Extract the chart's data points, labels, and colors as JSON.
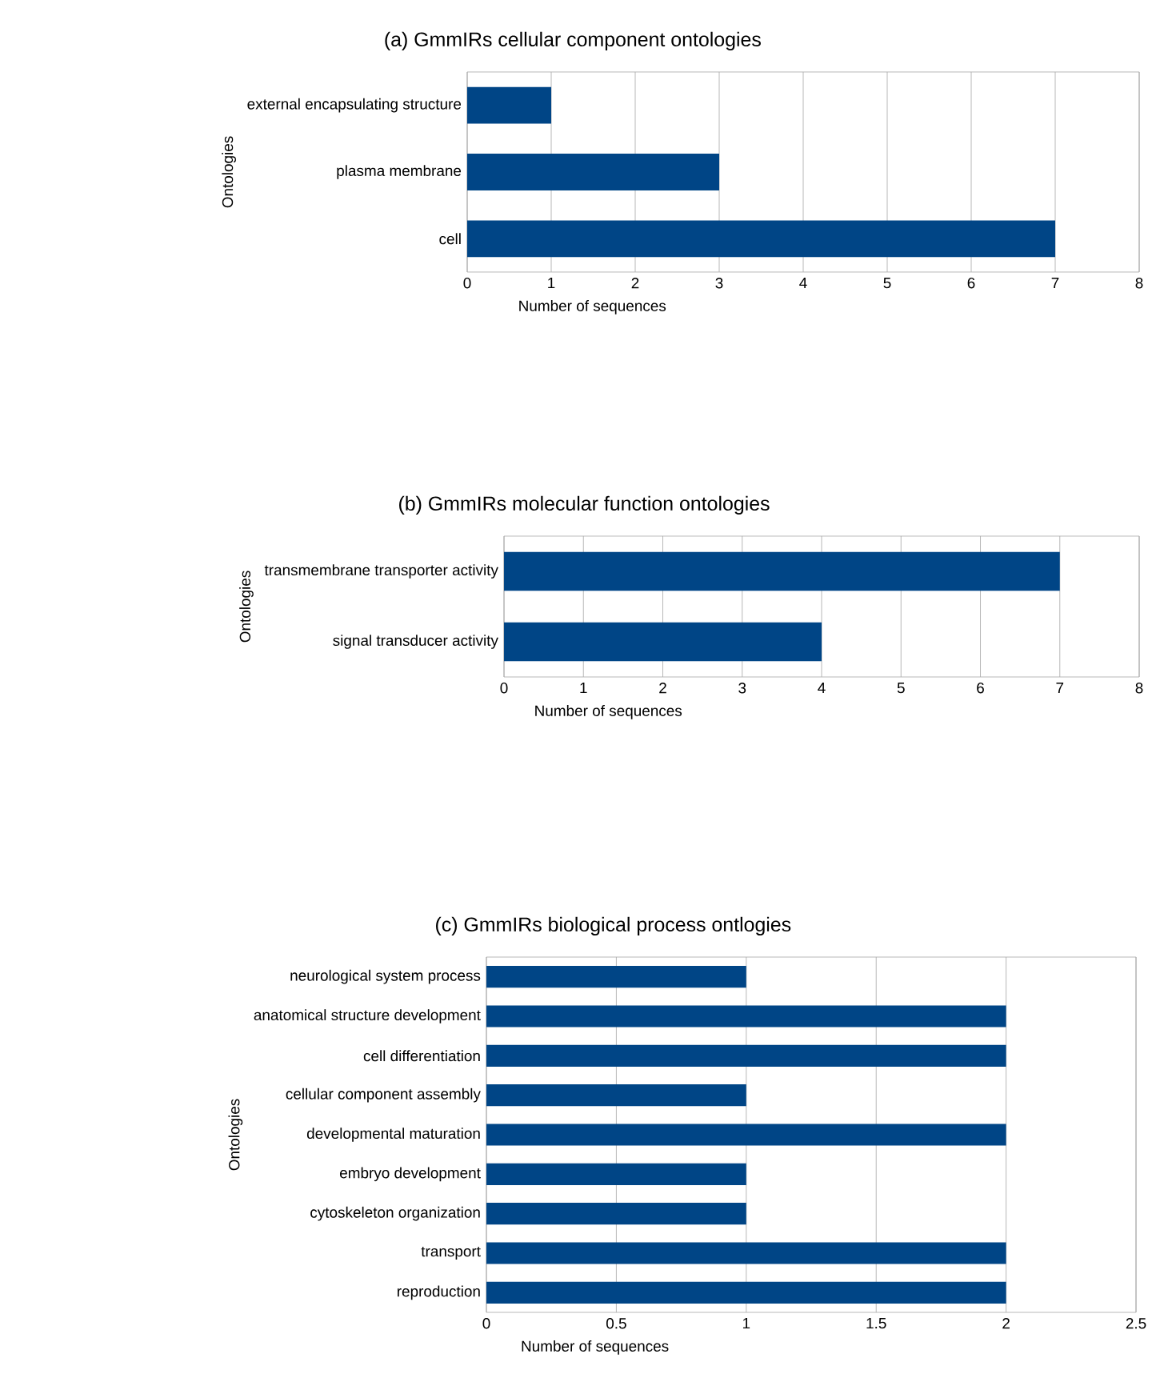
{
  "chart_data": [
    {
      "type": "bar",
      "orientation": "horizontal",
      "title": "(a) GmmIRs cellular component ontologies",
      "xlabel": "Number of sequences",
      "ylabel": "Ontologies",
      "categories": [
        "external encapsulating structure",
        "plasma membrane",
        "cell"
      ],
      "values": [
        1,
        3,
        7
      ],
      "color": "#004586",
      "xlim": [
        0,
        8
      ],
      "xticks": [
        0,
        1,
        2,
        3,
        4,
        5,
        6,
        7,
        8
      ],
      "grid": "x"
    },
    {
      "type": "bar",
      "orientation": "horizontal",
      "title": "(b) GmmIRs molecular function ontologies",
      "xlabel": "Number of sequences",
      "ylabel": "Ontologies",
      "categories": [
        "transmembrane transporter activity",
        "signal transducer activity"
      ],
      "values": [
        7,
        4
      ],
      "color": "#004586",
      "xlim": [
        0,
        8
      ],
      "xticks": [
        0,
        1,
        2,
        3,
        4,
        5,
        6,
        7,
        8
      ],
      "grid": "x"
    },
    {
      "type": "bar",
      "orientation": "horizontal",
      "title": "(c) GmmIRs biological process ontlogies",
      "xlabel": "Number of sequences",
      "ylabel": "Ontologies",
      "categories": [
        "neurological system process",
        "anatomical structure development",
        "cell differentiation",
        "cellular component assembly",
        "developmental maturation",
        "embryo development",
        "cytoskeleton organization",
        "transport",
        "reproduction"
      ],
      "values": [
        1,
        2,
        2,
        1,
        2,
        1,
        1,
        2,
        2
      ],
      "color": "#004586",
      "xlim": [
        0,
        2.5
      ],
      "xticks": [
        0,
        0.5,
        1,
        1.5,
        2,
        2.5
      ],
      "grid": "x"
    }
  ]
}
